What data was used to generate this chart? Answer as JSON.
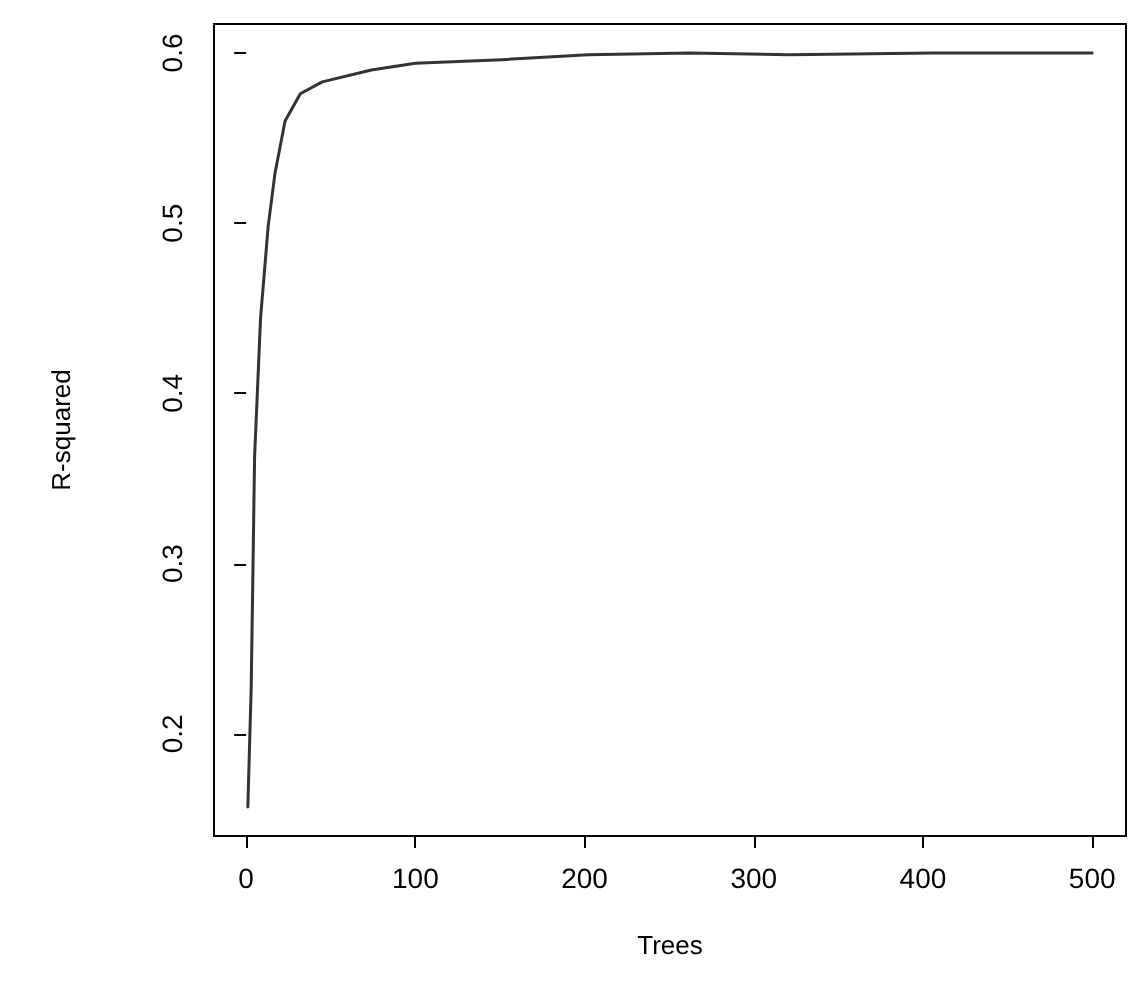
{
  "chart_data": {
    "type": "line",
    "xlabel": "Trees",
    "ylabel": "R-squared",
    "x": [
      1,
      3,
      5,
      8.5,
      13,
      17,
      23,
      32,
      45,
      74,
      100,
      151,
      202,
      262,
      321,
      406,
      500
    ],
    "series": [
      {
        "color": "#333333",
        "values": [
          0.157,
          0.228,
          0.363,
          0.444,
          0.498,
          0.529,
          0.56,
          0.576,
          0.583,
          0.59,
          0.594,
          0.596,
          0.599,
          0.6,
          0.599,
          0.6,
          0.6
        ]
      }
    ],
    "xlim": [
      -19,
      520
    ],
    "ylim": [
      0.14,
      0.617
    ],
    "xticks": [
      0,
      100,
      200,
      300,
      400,
      500
    ],
    "yticks": [
      0.2,
      0.3,
      0.4,
      0.5,
      0.6
    ],
    "marker": "none",
    "line_style": "solid"
  }
}
